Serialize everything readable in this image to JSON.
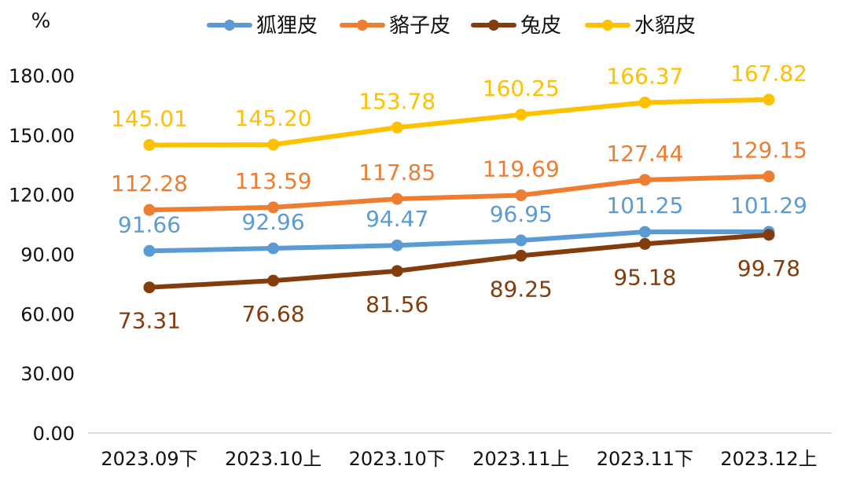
{
  "chart_data": {
    "type": "line",
    "unit_label": "%",
    "categories": [
      "2023.09下",
      "2023.10上",
      "2023.10下",
      "2023.11上",
      "2023.11下",
      "2023.12上"
    ],
    "y_ticks": [
      "0.00",
      "30.00",
      "60.00",
      "90.00",
      "120.00",
      "150.00",
      "180.00"
    ],
    "ylim": [
      0,
      180
    ],
    "grid": false,
    "legend_position": "top",
    "series": [
      {
        "name": "狐狸皮",
        "color": "#5B9BD5",
        "label_position": "above",
        "values": [
          91.66,
          92.96,
          94.47,
          96.95,
          101.25,
          101.29
        ],
        "labels": [
          "91.66",
          "92.96",
          "94.47",
          "96.95",
          "101.25",
          "101.29"
        ]
      },
      {
        "name": "貉子皮",
        "color": "#ED7D31",
        "label_position": "above",
        "values": [
          112.28,
          113.59,
          117.85,
          119.69,
          127.44,
          129.15
        ],
        "labels": [
          "112.28",
          "113.59",
          "117.85",
          "119.69",
          "127.44",
          "129.15"
        ]
      },
      {
        "name": "兔皮",
        "color": "#843C0C",
        "label_position": "below",
        "values": [
          73.31,
          76.68,
          81.56,
          89.25,
          95.18,
          99.78
        ],
        "labels": [
          "73.31",
          "76.68",
          "81.56",
          "89.25",
          "95.18",
          "99.78"
        ]
      },
      {
        "name": "水貂皮",
        "color": "#FFC000",
        "label_position": "above",
        "values": [
          145.01,
          145.2,
          153.78,
          160.25,
          166.37,
          167.82
        ],
        "labels": [
          "145.01",
          "145.20",
          "153.78",
          "160.25",
          "166.37",
          "167.82"
        ]
      }
    ]
  }
}
